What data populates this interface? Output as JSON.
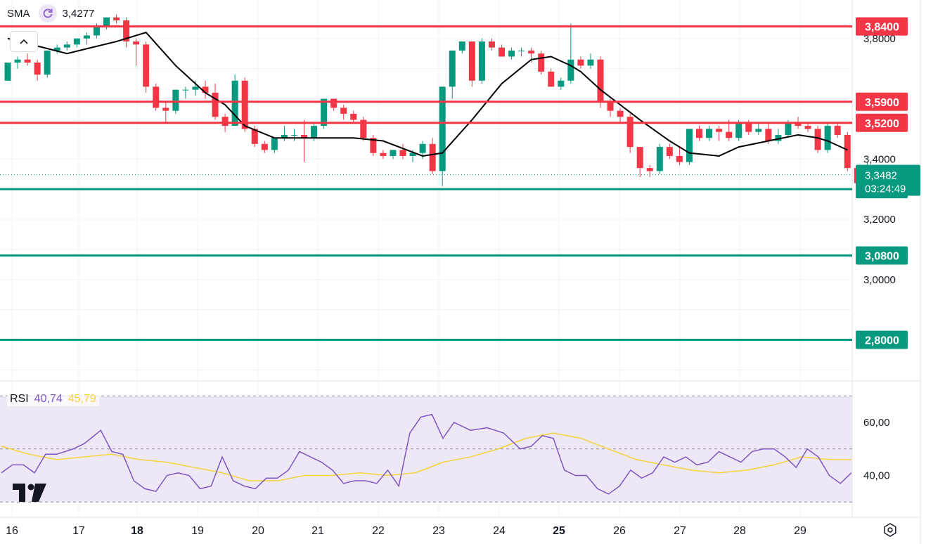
{
  "indicator": {
    "name": "SMA",
    "value": "3,4277"
  },
  "rsi": {
    "name": "RSI",
    "value": "40,74",
    "ma_value": "45,79"
  },
  "colors": {
    "up": "#089981",
    "down": "#f23645",
    "sma_line": "#000000",
    "rsi_line": "#7e57c2",
    "rsi_ma": "#f5d33b",
    "rsi_band": "#ede7f6"
  },
  "icons": [
    "sma-refresh-icon",
    "chevron-up-icon",
    "tradingview-logo-icon",
    "settings-gear-icon"
  ],
  "x_axis_labels": [
    "16",
    "17",
    "18",
    "19",
    "20",
    "21",
    "22",
    "23",
    "24",
    "25",
    "26",
    "27",
    "28",
    "29"
  ],
  "price_axis": {
    "ticks": [
      "3,8000",
      "3,4000",
      "3,2000",
      "3,0000"
    ]
  },
  "current_price": {
    "value": "3,3482",
    "countdown": "03:24:49"
  },
  "rsi_axis": {
    "ticks": [
      "60,00",
      "40,00"
    ]
  },
  "chart_data": [
    {
      "type": "candlestick",
      "x_labels": [
        "16",
        "17",
        "18",
        "19",
        "20",
        "21",
        "22",
        "23",
        "24",
        "25",
        "26",
        "27",
        "28",
        "29"
      ],
      "bar_interval": "2h",
      "ohlc": [
        [
          3.66,
          3.72,
          3.66,
          3.72
        ],
        [
          3.72,
          3.74,
          3.7,
          3.73
        ],
        [
          3.73,
          3.75,
          3.71,
          3.72
        ],
        [
          3.72,
          3.73,
          3.66,
          3.68
        ],
        [
          3.68,
          3.76,
          3.67,
          3.76
        ],
        [
          3.76,
          3.78,
          3.75,
          3.77
        ],
        [
          3.77,
          3.79,
          3.76,
          3.78
        ],
        [
          3.78,
          3.8,
          3.77,
          3.8
        ],
        [
          3.8,
          3.82,
          3.78,
          3.81
        ],
        [
          3.81,
          3.85,
          3.8,
          3.84
        ],
        [
          3.84,
          3.87,
          3.83,
          3.87
        ],
        [
          3.87,
          3.88,
          3.85,
          3.86
        ],
        [
          3.86,
          3.87,
          3.77,
          3.79
        ],
        [
          3.79,
          3.8,
          3.71,
          3.78
        ],
        [
          3.78,
          3.79,
          3.62,
          3.64
        ],
        [
          3.64,
          3.65,
          3.56,
          3.57
        ],
        [
          3.57,
          3.59,
          3.52,
          3.56
        ],
        [
          3.56,
          3.63,
          3.55,
          3.63
        ],
        [
          3.63,
          3.64,
          3.6,
          3.63
        ],
        [
          3.63,
          3.66,
          3.61,
          3.64
        ],
        [
          3.64,
          3.66,
          3.6,
          3.62
        ],
        [
          3.62,
          3.65,
          3.53,
          3.54
        ],
        [
          3.54,
          3.55,
          3.49,
          3.51
        ],
        [
          3.51,
          3.68,
          3.51,
          3.66
        ],
        [
          3.66,
          3.67,
          3.49,
          3.5
        ],
        [
          3.5,
          3.51,
          3.44,
          3.45
        ],
        [
          3.45,
          3.46,
          3.42,
          3.43
        ],
        [
          3.43,
          3.47,
          3.42,
          3.47
        ],
        [
          3.47,
          3.51,
          3.46,
          3.48
        ],
        [
          3.48,
          3.5,
          3.46,
          3.48
        ],
        [
          3.48,
          3.53,
          3.39,
          3.47
        ],
        [
          3.47,
          3.52,
          3.46,
          3.51
        ],
        [
          3.51,
          3.6,
          3.5,
          3.6
        ],
        [
          3.6,
          3.6,
          3.56,
          3.57
        ],
        [
          3.57,
          3.58,
          3.53,
          3.55
        ],
        [
          3.55,
          3.56,
          3.52,
          3.53
        ],
        [
          3.53,
          3.54,
          3.46,
          3.47
        ],
        [
          3.47,
          3.48,
          3.41,
          3.42
        ],
        [
          3.42,
          3.43,
          3.4,
          3.41
        ],
        [
          3.41,
          3.43,
          3.4,
          3.43
        ],
        [
          3.43,
          3.45,
          3.4,
          3.41
        ],
        [
          3.41,
          3.43,
          3.39,
          3.42
        ],
        [
          3.42,
          3.46,
          3.4,
          3.45
        ],
        [
          3.45,
          3.47,
          3.35,
          3.36
        ],
        [
          3.36,
          3.64,
          3.31,
          3.64
        ],
        [
          3.64,
          3.76,
          3.6,
          3.76
        ],
        [
          3.76,
          3.79,
          3.75,
          3.79
        ],
        [
          3.79,
          3.79,
          3.64,
          3.66
        ],
        [
          3.66,
          3.8,
          3.65,
          3.79
        ],
        [
          3.79,
          3.8,
          3.76,
          3.77
        ],
        [
          3.77,
          3.78,
          3.74,
          3.74
        ],
        [
          3.74,
          3.77,
          3.73,
          3.76
        ],
        [
          3.76,
          3.77,
          3.74,
          3.76
        ],
        [
          3.76,
          3.77,
          3.72,
          3.75
        ],
        [
          3.75,
          3.76,
          3.68,
          3.69
        ],
        [
          3.69,
          3.7,
          3.64,
          3.64
        ],
        [
          3.64,
          3.67,
          3.63,
          3.66
        ],
        [
          3.66,
          3.85,
          3.65,
          3.73
        ],
        [
          3.73,
          3.74,
          3.7,
          3.71
        ],
        [
          3.71,
          3.75,
          3.7,
          3.73
        ],
        [
          3.73,
          3.74,
          3.57,
          3.59
        ],
        [
          3.59,
          3.6,
          3.54,
          3.56
        ],
        [
          3.56,
          3.57,
          3.52,
          3.54
        ],
        [
          3.54,
          3.55,
          3.42,
          3.44
        ],
        [
          3.44,
          3.44,
          3.34,
          3.37
        ],
        [
          3.37,
          3.38,
          3.34,
          3.36
        ],
        [
          3.36,
          3.45,
          3.35,
          3.44
        ],
        [
          3.44,
          3.45,
          3.4,
          3.41
        ],
        [
          3.41,
          3.44,
          3.38,
          3.39
        ],
        [
          3.39,
          3.5,
          3.38,
          3.5
        ],
        [
          3.5,
          3.51,
          3.46,
          3.47
        ],
        [
          3.47,
          3.51,
          3.46,
          3.5
        ],
        [
          3.5,
          3.51,
          3.46,
          3.49
        ],
        [
          3.49,
          3.53,
          3.46,
          3.47
        ],
        [
          3.47,
          3.53,
          3.46,
          3.52
        ],
        [
          3.52,
          3.53,
          3.48,
          3.49
        ],
        [
          3.49,
          3.52,
          3.48,
          3.5
        ],
        [
          3.5,
          3.52,
          3.45,
          3.46
        ],
        [
          3.46,
          3.5,
          3.45,
          3.48
        ],
        [
          3.48,
          3.53,
          3.47,
          3.52
        ],
        [
          3.52,
          3.54,
          3.5,
          3.51
        ],
        [
          3.51,
          3.52,
          3.49,
          3.5
        ],
        [
          3.5,
          3.51,
          3.42,
          3.43
        ],
        [
          3.43,
          3.52,
          3.42,
          3.51
        ],
        [
          3.51,
          3.52,
          3.47,
          3.48
        ],
        [
          3.48,
          3.49,
          3.36,
          3.37
        ],
        [
          3.37,
          3.37,
          3.32,
          3.32
        ],
        [
          3.32,
          3.39,
          3.32,
          3.35
        ]
      ],
      "sma": [
        [
          0,
          3.8
        ],
        [
          6,
          3.75
        ],
        [
          11,
          3.79
        ],
        [
          14,
          3.82
        ],
        [
          17,
          3.71
        ],
        [
          20,
          3.62
        ],
        [
          22,
          3.58
        ],
        [
          24,
          3.51
        ],
        [
          27,
          3.47
        ],
        [
          31,
          3.47
        ],
        [
          35,
          3.47
        ],
        [
          38,
          3.46
        ],
        [
          42,
          3.41
        ],
        [
          44,
          3.42
        ],
        [
          47,
          3.53
        ],
        [
          50,
          3.65
        ],
        [
          53,
          3.73
        ],
        [
          55,
          3.74
        ],
        [
          57,
          3.71
        ],
        [
          58,
          3.69
        ],
        [
          60,
          3.63
        ],
        [
          64,
          3.53
        ],
        [
          67,
          3.46
        ],
        [
          69,
          3.42
        ],
        [
          72,
          3.41
        ],
        [
          74,
          3.44
        ],
        [
          77,
          3.46
        ],
        [
          80,
          3.48
        ],
        [
          82,
          3.47
        ],
        [
          83,
          3.46
        ],
        [
          85,
          3.43
        ]
      ],
      "levels": [
        {
          "label": "3,8400",
          "value": 3.84,
          "color": "#f23645"
        },
        {
          "label": "3,5900",
          "value": 3.59,
          "color": "#f23645"
        },
        {
          "label": "3,5200",
          "value": 3.52,
          "color": "#f23645"
        },
        {
          "label": "3,3000",
          "value": 3.3,
          "color": "#089981"
        },
        {
          "label": "3,0800",
          "value": 3.08,
          "color": "#089981"
        },
        {
          "label": "2,8000",
          "value": 2.8,
          "color": "#089981"
        }
      ],
      "ylim": [
        2.7,
        3.89
      ]
    },
    {
      "type": "line",
      "name": "RSI",
      "ylim": [
        25,
        72
      ],
      "bands": [
        30,
        50,
        70
      ],
      "rsi": [
        [
          0,
          41
        ],
        [
          2,
          44
        ],
        [
          4,
          44
        ],
        [
          6,
          41
        ],
        [
          8,
          48
        ],
        [
          10,
          48
        ],
        [
          13,
          50
        ],
        [
          15,
          52
        ],
        [
          18,
          57
        ],
        [
          20,
          49
        ],
        [
          22,
          48
        ],
        [
          24,
          38
        ],
        [
          26,
          35
        ],
        [
          28,
          34
        ],
        [
          30,
          40
        ],
        [
          32,
          41
        ],
        [
          34,
          40
        ],
        [
          36,
          35
        ],
        [
          38,
          36
        ],
        [
          40,
          47
        ],
        [
          42,
          38
        ],
        [
          44,
          36
        ],
        [
          46,
          35
        ],
        [
          48,
          39
        ],
        [
          50,
          39
        ],
        [
          52,
          42
        ],
        [
          54,
          49
        ],
        [
          56,
          47
        ],
        [
          58,
          45
        ],
        [
          60,
          42
        ],
        [
          62,
          37
        ],
        [
          64,
          38
        ],
        [
          66,
          38
        ],
        [
          68,
          37
        ],
        [
          70,
          42
        ],
        [
          72,
          36
        ],
        [
          74,
          56
        ],
        [
          76,
          62
        ],
        [
          78,
          63
        ],
        [
          80,
          54
        ],
        [
          82,
          60
        ],
        [
          85,
          57
        ],
        [
          88,
          58
        ],
        [
          91,
          56
        ],
        [
          94,
          50
        ],
        [
          96,
          51
        ],
        [
          98,
          55
        ],
        [
          100,
          54
        ],
        [
          102,
          42
        ],
        [
          104,
          40
        ],
        [
          106,
          40
        ],
        [
          108,
          35
        ],
        [
          110,
          33
        ],
        [
          112,
          36
        ],
        [
          114,
          42
        ],
        [
          116,
          39
        ],
        [
          118,
          41
        ],
        [
          120,
          47
        ],
        [
          122,
          45
        ],
        [
          124,
          47
        ],
        [
          126,
          44
        ],
        [
          128,
          45
        ],
        [
          130,
          49
        ],
        [
          132,
          47
        ],
        [
          134,
          45
        ],
        [
          136,
          49
        ],
        [
          138,
          50
        ],
        [
          140,
          50
        ],
        [
          142,
          47
        ],
        [
          144,
          43
        ],
        [
          146,
          50
        ],
        [
          148,
          47
        ],
        [
          150,
          40
        ],
        [
          152,
          37
        ],
        [
          154,
          41
        ]
      ],
      "rsi_ma": [
        [
          0,
          51
        ],
        [
          5,
          48
        ],
        [
          10,
          46
        ],
        [
          15,
          47
        ],
        [
          20,
          48
        ],
        [
          25,
          46
        ],
        [
          30,
          45
        ],
        [
          35,
          43
        ],
        [
          40,
          41
        ],
        [
          45,
          38
        ],
        [
          50,
          38
        ],
        [
          55,
          40
        ],
        [
          60,
          40
        ],
        [
          65,
          41
        ],
        [
          70,
          40
        ],
        [
          75,
          41
        ],
        [
          80,
          45
        ],
        [
          85,
          47
        ],
        [
          90,
          50
        ],
        [
          95,
          54
        ],
        [
          100,
          56
        ],
        [
          105,
          54
        ],
        [
          110,
          50
        ],
        [
          115,
          46
        ],
        [
          120,
          44
        ],
        [
          125,
          42
        ],
        [
          130,
          41
        ],
        [
          135,
          42
        ],
        [
          140,
          44
        ],
        [
          145,
          47
        ],
        [
          150,
          46
        ],
        [
          154,
          46
        ]
      ]
    }
  ]
}
